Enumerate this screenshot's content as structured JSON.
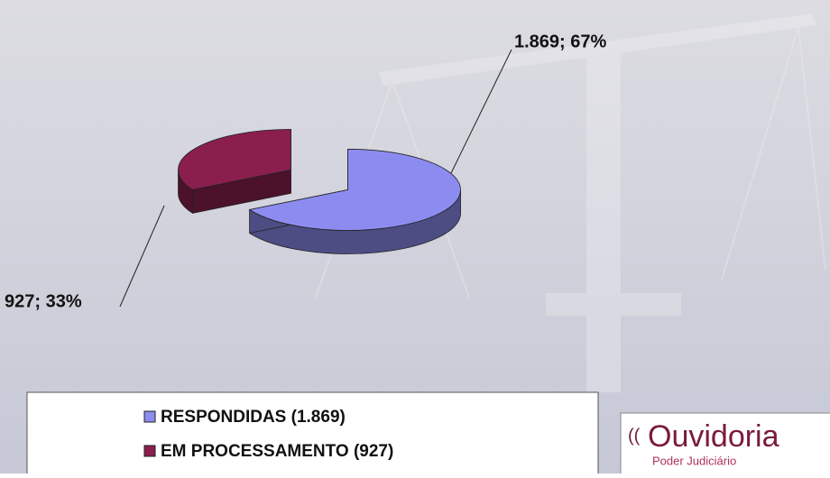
{
  "chart_data": {
    "type": "pie",
    "categories": [
      "RESPONDIDAS (1.869)",
      "EM PROCESSAMENTO (927)"
    ],
    "values": [
      1869,
      927
    ],
    "value_labels": [
      "1.869; 67%",
      "927; 33%"
    ],
    "colors": [
      "#8c8cf0",
      "#8a1f4e"
    ],
    "legend": "bottom"
  },
  "logo": {
    "title": "Ouvidoria",
    "subtitle": "Poder Judiciário"
  }
}
